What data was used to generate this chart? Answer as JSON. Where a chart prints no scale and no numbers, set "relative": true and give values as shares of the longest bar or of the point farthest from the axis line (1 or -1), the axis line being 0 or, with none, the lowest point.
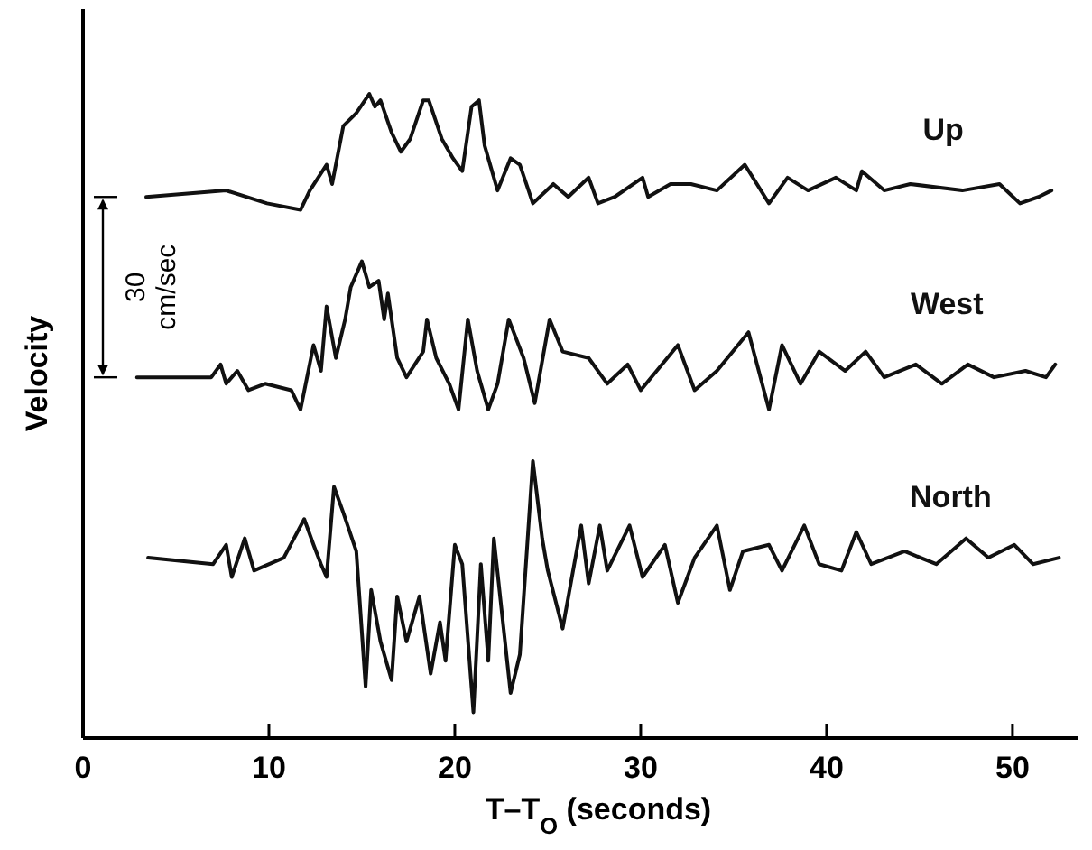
{
  "chart_data": {
    "type": "line",
    "relative": true,
    "xlabel": "T–T$_{O}$  (seconds)",
    "ylabel": "Velocity",
    "xlim": [
      0,
      53.5
    ],
    "xticks": [
      0,
      10,
      20,
      30,
      40,
      50
    ],
    "marker": "none",
    "line_style": "solid",
    "annotations": [
      "30 cm/sec"
    ],
    "series": [
      {
        "name": "Up",
        "color": "#111111",
        "x": [
          3.4,
          7.7,
          9.9,
          11.7,
          12.2,
          13.1,
          13.4,
          14.0,
          14.7,
          15.4,
          15.7,
          16.0,
          16.6,
          17.1,
          17.6,
          18.3,
          18.6,
          19.3,
          19.9,
          20.4,
          20.9,
          21.3,
          21.6,
          22.3,
          23.0,
          23.5,
          24.2,
          25.3,
          26.1,
          27.2,
          27.7,
          28.6,
          30.1,
          30.4,
          31.6,
          32.7,
          34.1,
          35.6,
          36.9,
          37.9,
          39.0,
          40.5,
          41.6,
          41.9,
          43.1,
          44.5,
          47.3,
          49.3,
          50.4,
          51.4,
          52.1
        ],
        "values": [
          0.84,
          0.85,
          0.83,
          0.82,
          0.85,
          0.89,
          0.86,
          0.95,
          0.97,
          1.0,
          0.98,
          0.99,
          0.94,
          0.91,
          0.93,
          0.99,
          0.99,
          0.93,
          0.9,
          0.88,
          0.98,
          0.99,
          0.92,
          0.85,
          0.9,
          0.89,
          0.83,
          0.86,
          0.84,
          0.87,
          0.83,
          0.84,
          0.87,
          0.84,
          0.86,
          0.86,
          0.85,
          0.89,
          0.83,
          0.87,
          0.85,
          0.87,
          0.85,
          0.88,
          0.85,
          0.86,
          0.85,
          0.86,
          0.83,
          0.84,
          0.85
        ]
      },
      {
        "name": "West",
        "color": "#111111",
        "x": [
          2.9,
          6.9,
          7.4,
          7.7,
          8.3,
          8.9,
          9.8,
          11.2,
          11.7,
          12.4,
          12.8,
          13.1,
          13.6,
          14.1,
          14.4,
          15.0,
          15.4,
          15.9,
          16.2,
          16.4,
          16.9,
          17.4,
          18.3,
          18.5,
          19.0,
          19.7,
          20.2,
          20.7,
          21.2,
          21.8,
          22.3,
          22.9,
          23.7,
          24.3,
          25.1,
          25.8,
          27.2,
          28.2,
          29.3,
          30.0,
          32.0,
          32.9,
          34.1,
          35.8,
          36.9,
          37.6,
          38.6,
          39.6,
          41.0,
          42.1,
          43.1,
          44.8,
          46.2,
          47.6,
          49.0,
          50.7,
          51.8,
          52.3
        ],
        "values": [
          0.56,
          0.56,
          0.58,
          0.55,
          0.57,
          0.54,
          0.55,
          0.54,
          0.51,
          0.61,
          0.57,
          0.67,
          0.59,
          0.65,
          0.7,
          0.74,
          0.7,
          0.71,
          0.65,
          0.69,
          0.59,
          0.56,
          0.6,
          0.65,
          0.59,
          0.55,
          0.51,
          0.65,
          0.57,
          0.51,
          0.55,
          0.65,
          0.59,
          0.52,
          0.65,
          0.6,
          0.59,
          0.55,
          0.58,
          0.54,
          0.61,
          0.54,
          0.57,
          0.63,
          0.51,
          0.61,
          0.55,
          0.6,
          0.57,
          0.6,
          0.56,
          0.58,
          0.55,
          0.58,
          0.56,
          0.57,
          0.56,
          0.58
        ]
      },
      {
        "name": "North",
        "color": "#111111",
        "x": [
          3.5,
          7.0,
          7.7,
          8.0,
          8.7,
          9.2,
          10.8,
          11.9,
          12.4,
          12.8,
          13.1,
          13.5,
          14.0,
          14.7,
          15.2,
          15.5,
          16.0,
          16.6,
          16.9,
          17.4,
          18.1,
          18.7,
          19.2,
          19.5,
          20.0,
          20.4,
          21.0,
          21.4,
          21.8,
          22.1,
          23.0,
          23.5,
          24.2,
          24.7,
          25.0,
          25.8,
          26.8,
          27.2,
          27.8,
          28.2,
          29.4,
          30.1,
          31.3,
          32.0,
          32.9,
          34.1,
          34.8,
          35.5,
          36.9,
          37.6,
          38.8,
          39.6,
          40.8,
          41.6,
          42.4,
          44.2,
          45.9,
          47.5,
          48.7,
          50.1,
          51.1,
          52.5
        ],
        "values": [
          0.28,
          0.27,
          0.3,
          0.25,
          0.31,
          0.26,
          0.28,
          0.34,
          0.3,
          0.27,
          0.25,
          0.39,
          0.35,
          0.29,
          0.08,
          0.23,
          0.15,
          0.09,
          0.22,
          0.15,
          0.22,
          0.1,
          0.18,
          0.12,
          0.3,
          0.27,
          0.04,
          0.27,
          0.12,
          0.31,
          0.07,
          0.13,
          0.43,
          0.31,
          0.26,
          0.17,
          0.33,
          0.24,
          0.33,
          0.26,
          0.33,
          0.25,
          0.3,
          0.21,
          0.28,
          0.33,
          0.23,
          0.29,
          0.3,
          0.26,
          0.33,
          0.27,
          0.26,
          0.32,
          0.27,
          0.29,
          0.27,
          0.31,
          0.28,
          0.3,
          0.27,
          0.28
        ]
      }
    ]
  }
}
